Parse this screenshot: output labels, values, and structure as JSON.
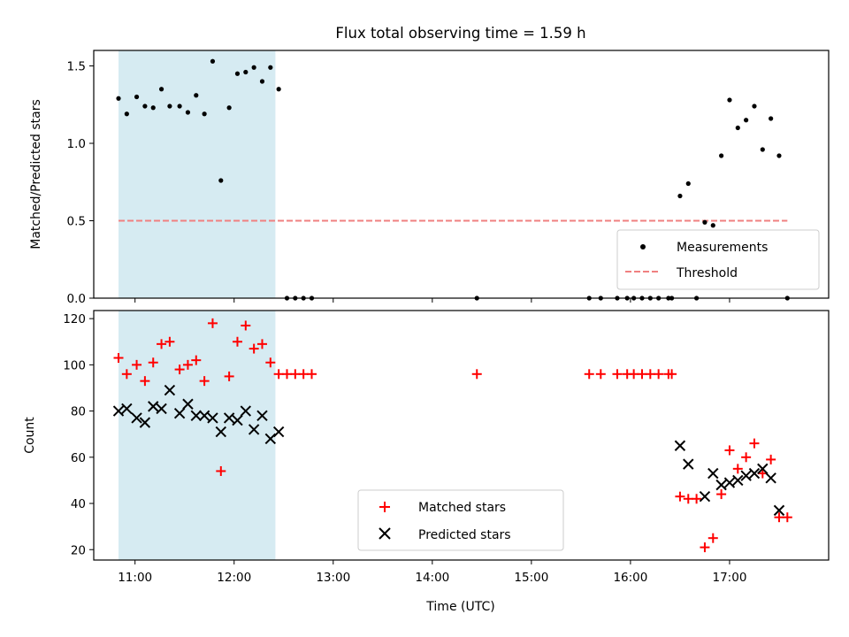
{
  "title": "Flux total observing time = 1.59 h",
  "xlabel": "Time (UTC)",
  "x_tick_labels": [
    "11:00",
    "12:00",
    "13:00",
    "14:00",
    "15:00",
    "16:00",
    "17:00"
  ],
  "colors": {
    "shade": "#add8e6",
    "measurement": "#000000",
    "threshold": "#f08080",
    "matched": "#ff0000",
    "predicted": "#000000"
  },
  "chart_data": [
    {
      "type": "scatter",
      "ylabel": "Matched/Predicted stars",
      "xlim": [
        "10:35",
        "18:00"
      ],
      "ylim": [
        0,
        1.6
      ],
      "y_ticks": [
        0.0,
        0.5,
        1.0,
        1.5
      ],
      "y_tick_labels": [
        "0.0",
        "0.5",
        "1.0",
        "1.5"
      ],
      "shaded_region": [
        "10:50",
        "12:25"
      ],
      "threshold": {
        "y": 0.5,
        "x_range": [
          "10:50",
          "17:35"
        ]
      },
      "legend": {
        "position": "lower-right",
        "entries": [
          "Measurements",
          "Threshold"
        ]
      },
      "series": [
        {
          "name": "Measurements",
          "points": [
            [
              "10:50",
              1.29
            ],
            [
              "10:55",
              1.19
            ],
            [
              "11:01",
              1.3
            ],
            [
              "11:06",
              1.24
            ],
            [
              "11:11",
              1.23
            ],
            [
              "11:16",
              1.35
            ],
            [
              "11:21",
              1.24
            ],
            [
              "11:27",
              1.24
            ],
            [
              "11:32",
              1.2
            ],
            [
              "11:37",
              1.31
            ],
            [
              "11:42",
              1.19
            ],
            [
              "11:47",
              1.53
            ],
            [
              "11:52",
              0.76
            ],
            [
              "11:57",
              1.23
            ],
            [
              "12:02",
              1.45
            ],
            [
              "12:07",
              1.46
            ],
            [
              "12:12",
              1.49
            ],
            [
              "12:17",
              1.4
            ],
            [
              "12:22",
              1.49
            ],
            [
              "12:27",
              1.35
            ],
            [
              "12:32",
              0
            ],
            [
              "12:37",
              0
            ],
            [
              "12:42",
              0
            ],
            [
              "12:47",
              0
            ],
            [
              "14:27",
              0
            ],
            [
              "15:35",
              0
            ],
            [
              "15:42",
              0
            ],
            [
              "15:52",
              0
            ],
            [
              "15:58",
              0
            ],
            [
              "16:02",
              0
            ],
            [
              "16:07",
              0
            ],
            [
              "16:12",
              0
            ],
            [
              "16:17",
              0
            ],
            [
              "16:23",
              0
            ],
            [
              "16:25",
              0
            ],
            [
              "16:40",
              0
            ],
            [
              "16:30",
              0.66
            ],
            [
              "16:35",
              0.74
            ],
            [
              "16:45",
              0.49
            ],
            [
              "16:50",
              0.47
            ],
            [
              "16:55",
              0.92
            ],
            [
              "17:00",
              1.28
            ],
            [
              "17:05",
              1.1
            ],
            [
              "17:10",
              1.15
            ],
            [
              "17:15",
              1.24
            ],
            [
              "17:20",
              0.96
            ],
            [
              "17:25",
              1.16
            ],
            [
              "17:30",
              0.92
            ],
            [
              "17:35",
              0
            ]
          ]
        }
      ]
    },
    {
      "type": "scatter",
      "ylabel": "Count",
      "xlim": [
        "10:35",
        "18:00"
      ],
      "ylim": [
        15.5,
        123.5
      ],
      "y_ticks": [
        20,
        40,
        60,
        80,
        100,
        120
      ],
      "y_tick_labels": [
        "20",
        "40",
        "60",
        "80",
        "100",
        "120"
      ],
      "shaded_region": [
        "10:50",
        "12:25"
      ],
      "legend": {
        "position": "lower-center",
        "entries": [
          "Matched stars",
          "Predicted stars"
        ]
      },
      "series": [
        {
          "name": "Matched stars",
          "marker": "plus",
          "points": [
            [
              "10:50",
              103
            ],
            [
              "10:55",
              96
            ],
            [
              "11:01",
              100
            ],
            [
              "11:06",
              93
            ],
            [
              "11:11",
              101
            ],
            [
              "11:16",
              109
            ],
            [
              "11:21",
              110
            ],
            [
              "11:27",
              98
            ],
            [
              "11:32",
              100
            ],
            [
              "11:37",
              102
            ],
            [
              "11:42",
              93
            ],
            [
              "11:47",
              118
            ],
            [
              "11:52",
              54
            ],
            [
              "11:57",
              95
            ],
            [
              "12:02",
              110
            ],
            [
              "12:07",
              117
            ],
            [
              "12:12",
              107
            ],
            [
              "12:17",
              109
            ],
            [
              "12:22",
              101
            ],
            [
              "12:27",
              96
            ],
            [
              "12:32",
              96
            ],
            [
              "12:37",
              96
            ],
            [
              "12:42",
              96
            ],
            [
              "12:47",
              96
            ],
            [
              "14:27",
              96
            ],
            [
              "15:35",
              96
            ],
            [
              "15:42",
              96
            ],
            [
              "15:52",
              96
            ],
            [
              "15:58",
              96
            ],
            [
              "16:02",
              96
            ],
            [
              "16:07",
              96
            ],
            [
              "16:12",
              96
            ],
            [
              "16:17",
              96
            ],
            [
              "16:23",
              96
            ],
            [
              "16:25",
              96
            ],
            [
              "16:30",
              43
            ],
            [
              "16:35",
              42
            ],
            [
              "16:40",
              42
            ],
            [
              "16:45",
              21
            ],
            [
              "16:50",
              25
            ],
            [
              "16:55",
              44
            ],
            [
              "17:00",
              63
            ],
            [
              "17:05",
              55
            ],
            [
              "17:10",
              60
            ],
            [
              "17:15",
              66
            ],
            [
              "17:20",
              53
            ],
            [
              "17:25",
              59
            ],
            [
              "17:30",
              34
            ],
            [
              "17:35",
              34
            ]
          ]
        },
        {
          "name": "Predicted stars",
          "marker": "x",
          "points": [
            [
              "10:50",
              80
            ],
            [
              "10:55",
              81
            ],
            [
              "11:01",
              77
            ],
            [
              "11:06",
              75
            ],
            [
              "11:11",
              82
            ],
            [
              "11:16",
              81
            ],
            [
              "11:21",
              89
            ],
            [
              "11:27",
              79
            ],
            [
              "11:32",
              83
            ],
            [
              "11:37",
              78
            ],
            [
              "11:42",
              78
            ],
            [
              "11:47",
              77
            ],
            [
              "11:52",
              71
            ],
            [
              "11:57",
              77
            ],
            [
              "12:02",
              76
            ],
            [
              "12:07",
              80
            ],
            [
              "12:12",
              72
            ],
            [
              "12:17",
              78
            ],
            [
              "12:22",
              68
            ],
            [
              "12:27",
              71
            ],
            [
              "16:30",
              65
            ],
            [
              "16:35",
              57
            ],
            [
              "16:45",
              43
            ],
            [
              "16:50",
              53
            ],
            [
              "16:55",
              48
            ],
            [
              "17:00",
              49
            ],
            [
              "17:05",
              50
            ],
            [
              "17:10",
              52
            ],
            [
              "17:15",
              53
            ],
            [
              "17:20",
              55
            ],
            [
              "17:25",
              51
            ],
            [
              "17:30",
              37
            ]
          ]
        }
      ]
    }
  ]
}
